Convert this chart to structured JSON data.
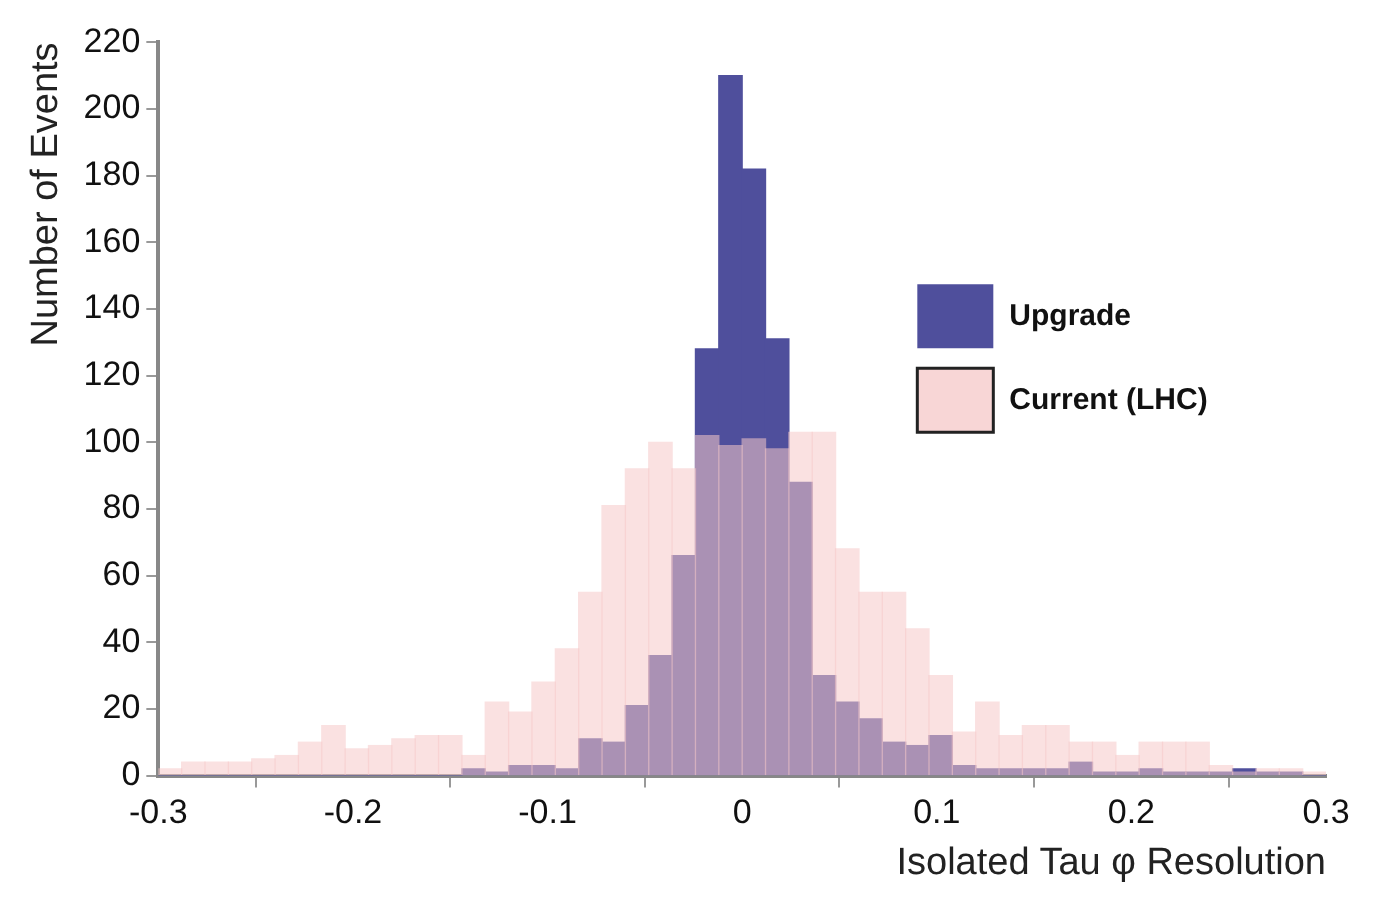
{
  "chart_data": {
    "type": "histogram",
    "xlabel": "Isolated Tau φ Resolution",
    "ylabel": "Number of Events",
    "bins": [
      -0.3,
      -0.288,
      -0.276,
      -0.264,
      -0.252,
      -0.24,
      -0.228,
      -0.216,
      -0.204,
      -0.192,
      -0.18,
      -0.168,
      -0.156,
      -0.144,
      -0.132,
      -0.12,
      -0.108,
      -0.096,
      -0.084,
      -0.072,
      -0.06,
      -0.048,
      -0.036,
      -0.024,
      -0.012,
      0,
      0.012,
      0.024,
      0.036,
      0.048,
      0.06,
      0.072,
      0.084,
      0.096,
      0.108,
      0.12,
      0.132,
      0.144,
      0.156,
      0.168,
      0.18,
      0.192,
      0.204,
      0.216,
      0.228,
      0.24,
      0.252,
      0.264,
      0.276,
      0.288,
      0.3
    ],
    "series": [
      {
        "name": "Upgrade",
        "color": "#4f4f9c",
        "values": [
          0,
          0,
          0,
          0,
          0,
          0,
          0,
          0,
          0,
          0,
          0,
          0,
          0,
          2,
          1,
          3,
          3,
          2,
          11,
          10,
          21,
          36,
          66,
          128,
          210,
          182,
          131,
          88,
          30,
          22,
          17,
          10,
          9,
          12,
          3,
          2,
          2,
          2,
          2,
          4,
          1,
          1,
          2,
          1,
          1,
          1,
          2,
          1,
          1,
          0
        ]
      },
      {
        "name": "Current (LHC)",
        "color": "#f6c8c8",
        "values": [
          2,
          4,
          4,
          4,
          5,
          6,
          10,
          15,
          8,
          9,
          11,
          12,
          12,
          6,
          22,
          19,
          28,
          38,
          55,
          81,
          92,
          100,
          92,
          102,
          99,
          101,
          98,
          103,
          103,
          68,
          55,
          55,
          44,
          30,
          13,
          22,
          12,
          15,
          15,
          10,
          10,
          6,
          10,
          10,
          10,
          3,
          1,
          2,
          2,
          1
        ]
      }
    ],
    "xlim": [
      -0.3,
      0.3
    ],
    "xticks": [
      -0.3,
      -0.2,
      -0.1,
      0,
      0.1,
      0.2,
      0.3
    ],
    "ylim": [
      0,
      220
    ],
    "yticks": [
      0,
      20,
      40,
      60,
      80,
      100,
      120,
      140,
      160,
      180,
      200,
      220
    ],
    "grid": false,
    "legend": "right"
  }
}
